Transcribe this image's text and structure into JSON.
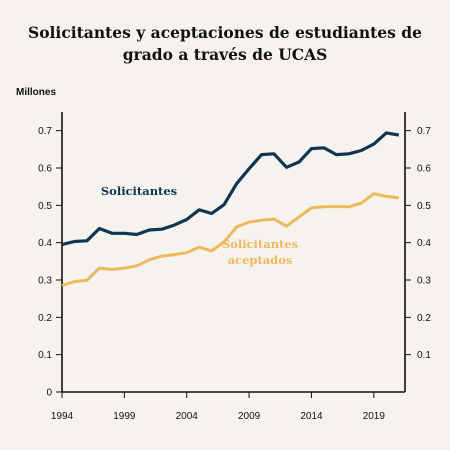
{
  "chart_data": {
    "type": "line",
    "title_line1": "Solicitantes y aceptaciones de estudiantes de",
    "title_line2": "grado a través de UCAS",
    "ylabel": "Millones",
    "ylim": [
      0,
      0.75
    ],
    "yticks_left": [
      "0",
      "0.1",
      "0.2",
      "0.3",
      "0.4",
      "0.5",
      "0.6",
      "0.7"
    ],
    "yticks_right": [
      "0.1",
      "0.2",
      "0.3",
      "0.4",
      "0.5",
      "0.6",
      "0.7"
    ],
    "xlim": [
      1994,
      2021.5
    ],
    "xticks": [
      "1994",
      "1999",
      "2004",
      "2009",
      "2014",
      "2019"
    ],
    "grid": false,
    "x": [
      1994,
      1995,
      1996,
      1997,
      1998,
      1999,
      2000,
      2001,
      2002,
      2003,
      2004,
      2005,
      2006,
      2007,
      2008,
      2009,
      2010,
      2011,
      2012,
      2013,
      2014,
      2015,
      2016,
      2017,
      2018,
      2019,
      2020,
      2021
    ],
    "series": [
      {
        "name": "Solicitantes",
        "color": "#0f3552",
        "values": [
          0.395,
          0.403,
          0.405,
          0.438,
          0.425,
          0.425,
          0.422,
          0.434,
          0.436,
          0.447,
          0.462,
          0.488,
          0.478,
          0.502,
          0.558,
          0.598,
          0.636,
          0.638,
          0.602,
          0.616,
          0.652,
          0.654,
          0.636,
          0.638,
          0.647,
          0.664,
          0.694,
          0.688
        ]
      },
      {
        "name": "Solicitantes aceptados",
        "color": "#ecba5c",
        "values": [
          0.285,
          0.296,
          0.299,
          0.332,
          0.328,
          0.332,
          0.338,
          0.354,
          0.364,
          0.368,
          0.373,
          0.388,
          0.378,
          0.402,
          0.442,
          0.455,
          0.46,
          0.463,
          0.444,
          0.469,
          0.493,
          0.496,
          0.497,
          0.496,
          0.506,
          0.531,
          0.524,
          0.52
        ]
      }
    ],
    "annotations": [
      {
        "series": "Solicitantes",
        "lines": [
          "Solicitantes"
        ]
      },
      {
        "series": "Solicitantes aceptados",
        "lines": [
          "Solicitantes",
          "aceptados"
        ]
      }
    ]
  }
}
